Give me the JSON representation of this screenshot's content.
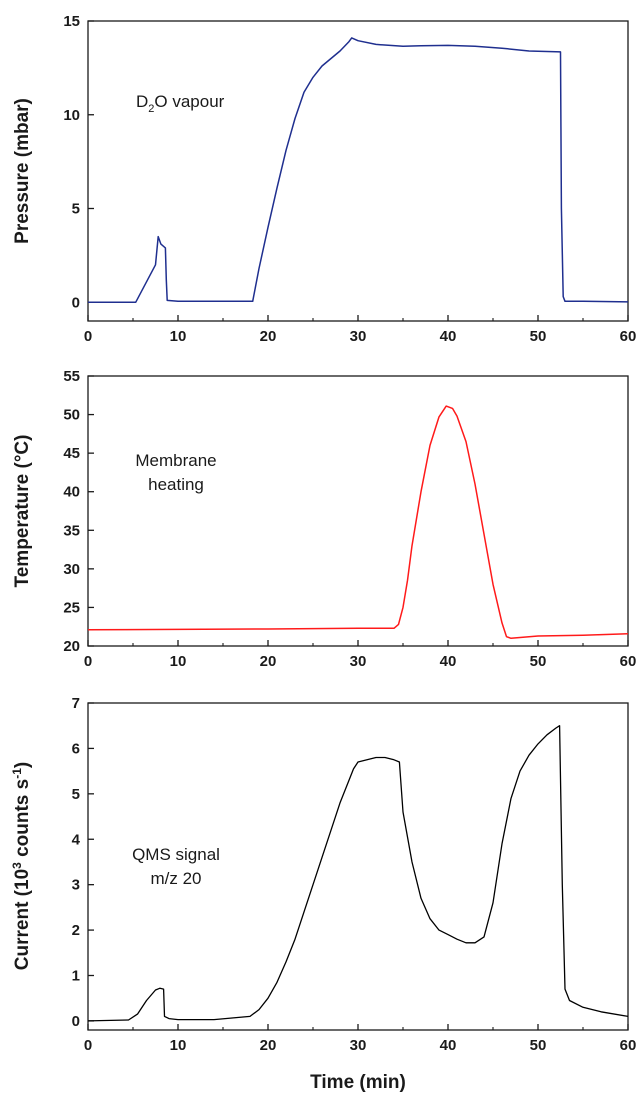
{
  "chart_data": [
    {
      "type": "line",
      "annotation": {
        "main": "D",
        "sub": "2",
        "rest": "O vapour"
      },
      "xlabel": "",
      "ylabel": "Pressure (mbar)",
      "xlim": [
        0,
        60
      ],
      "ylim": [
        -1,
        15
      ],
      "xticks": [
        0,
        10,
        20,
        30,
        40,
        50,
        60
      ],
      "yticks": [
        0,
        5,
        10,
        15
      ],
      "grid": false,
      "color": "#1f2f8f",
      "series": [
        {
          "x": [
            0,
            5.3,
            7.5,
            7.8,
            8.1,
            8.6,
            8.7,
            8.8,
            10,
            15,
            18.3,
            19,
            20,
            21,
            22,
            23,
            24,
            25,
            26,
            27,
            28,
            29,
            29.3,
            30,
            32,
            35,
            37,
            40,
            43,
            46,
            49,
            52.5,
            52.6,
            52.8,
            53,
            55,
            60
          ],
          "y": [
            0,
            0,
            2.0,
            3.5,
            3.1,
            2.9,
            1.2,
            0.1,
            0.05,
            0.05,
            0.05,
            1.8,
            4.0,
            6.1,
            8.1,
            9.8,
            11.2,
            12.0,
            12.6,
            13.0,
            13.4,
            13.9,
            14.1,
            13.95,
            13.75,
            13.65,
            13.68,
            13.7,
            13.65,
            13.55,
            13.4,
            13.35,
            5.0,
            0.3,
            0.05,
            0.05,
            0.02
          ]
        }
      ]
    },
    {
      "type": "line",
      "annotation": {
        "line1": "Membrane",
        "line2": "heating"
      },
      "xlabel": "",
      "ylabel": "Temperature (°C)",
      "xlim": [
        0,
        60
      ],
      "ylim": [
        20,
        55
      ],
      "xticks": [
        0,
        10,
        20,
        30,
        40,
        50,
        60
      ],
      "yticks": [
        20,
        25,
        30,
        35,
        40,
        45,
        50,
        55
      ],
      "grid": false,
      "color": "#ff1a1a",
      "series": [
        {
          "x": [
            0,
            10,
            20,
            30,
            34,
            34.5,
            35,
            35.5,
            36,
            37,
            38,
            39,
            39.8,
            40.5,
            41,
            42,
            43,
            44,
            45,
            46,
            46.5,
            47,
            48,
            50,
            55,
            60
          ],
          "y": [
            22.1,
            22.15,
            22.2,
            22.3,
            22.3,
            22.8,
            25,
            28.5,
            33,
            40,
            46,
            49.7,
            51.1,
            50.8,
            49.8,
            46.5,
            41,
            34.5,
            28,
            23,
            21.2,
            21.0,
            21.1,
            21.3,
            21.4,
            21.6
          ]
        }
      ]
    },
    {
      "type": "line",
      "annotation": {
        "line1": "QMS signal",
        "line2": "m/z 20"
      },
      "xlabel": "Time (min)",
      "ylabel": {
        "pre": "Current (10",
        "sup1": "3",
        "mid": " counts s",
        "sup2": "-1",
        "post": ")"
      },
      "xlim": [
        0,
        60
      ],
      "ylim": [
        -0.2,
        7
      ],
      "xticks": [
        0,
        10,
        20,
        30,
        40,
        50,
        60
      ],
      "yticks": [
        0,
        1,
        2,
        3,
        4,
        5,
        6,
        7
      ],
      "grid": false,
      "color": "#000000",
      "series": [
        {
          "x": [
            0,
            4.5,
            5.5,
            6.5,
            7.5,
            8,
            8.4,
            8.5,
            9,
            10,
            14,
            18,
            19,
            20,
            21,
            22,
            23,
            24,
            25,
            26,
            27,
            28,
            29,
            29.5,
            30,
            31,
            32,
            33,
            34,
            34.6,
            35,
            36,
            37,
            38,
            39,
            40,
            41,
            42,
            43,
            44,
            45,
            46,
            47,
            48,
            49,
            50,
            51,
            52,
            52.4,
            52.7,
            53,
            53.5,
            55,
            57,
            60
          ],
          "y": [
            0,
            0.02,
            0.15,
            0.45,
            0.68,
            0.72,
            0.7,
            0.1,
            0.05,
            0.03,
            0.03,
            0.1,
            0.25,
            0.5,
            0.85,
            1.3,
            1.8,
            2.4,
            3.0,
            3.6,
            4.2,
            4.8,
            5.3,
            5.55,
            5.7,
            5.75,
            5.8,
            5.8,
            5.75,
            5.7,
            4.6,
            3.5,
            2.7,
            2.25,
            2.0,
            1.9,
            1.8,
            1.72,
            1.72,
            1.85,
            2.6,
            3.9,
            4.9,
            5.5,
            5.85,
            6.1,
            6.3,
            6.45,
            6.5,
            3.0,
            0.7,
            0.45,
            0.3,
            0.2,
            0.1
          ]
        }
      ]
    }
  ]
}
